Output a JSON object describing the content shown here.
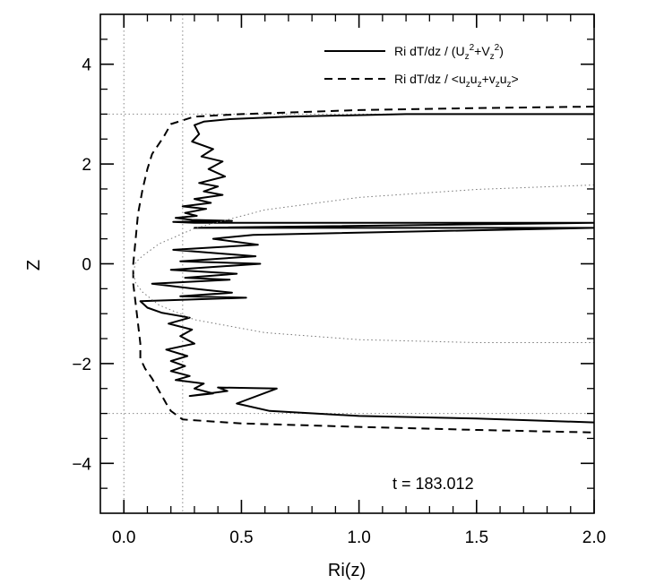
{
  "chart_data": {
    "type": "line",
    "title": "",
    "xlabel": "Ri(z)",
    "ylabel": "Z",
    "xlim": [
      -0.1,
      2.0
    ],
    "ylim": [
      -5,
      5
    ],
    "x_ticks": [
      0.0,
      0.5,
      1.0,
      1.5,
      2.0
    ],
    "x_tick_labels": [
      "0.0",
      "0.5",
      "1.0",
      "1.5",
      "2.0"
    ],
    "y_ticks": [
      -4,
      -2,
      0,
      2,
      4
    ],
    "y_tick_labels": [
      "−4",
      "−2",
      "0",
      "2",
      "4"
    ],
    "grid": false,
    "legend_position": "top-right",
    "annotation": "t = 183.012",
    "reference_lines": {
      "vertical_x": [
        0.0,
        0.25
      ],
      "horizontal_z": [
        3.0,
        -3.0
      ]
    },
    "series": [
      {
        "name": "Ri dT/dz / (U_z^2+V_z^2)",
        "style": "solid",
        "color": "#000000",
        "x": [
          2.0,
          1.2,
          0.7,
          0.45,
          0.34,
          0.3,
          0.32,
          0.29,
          0.38,
          0.33,
          0.42,
          0.36,
          0.43,
          0.32,
          0.4,
          0.34,
          0.42,
          0.3,
          0.37,
          0.25,
          0.35,
          0.26,
          0.31,
          0.22,
          0.29,
          0.46,
          0.21,
          0.3,
          2.0,
          0.3,
          2.0,
          0.55,
          0.38,
          0.57,
          0.21,
          0.56,
          0.24,
          0.58,
          0.2,
          0.48,
          0.26,
          0.45,
          0.12,
          0.3,
          0.46,
          0.24,
          0.52,
          0.07,
          0.1,
          0.16,
          0.28,
          0.19,
          0.29,
          0.24,
          0.3,
          0.18,
          0.27,
          0.2,
          0.26,
          0.2,
          0.28,
          0.22,
          0.34,
          0.3,
          0.38,
          0.28,
          0.44,
          0.4,
          0.65,
          0.48,
          0.62,
          1.0,
          1.5,
          2.0
        ],
        "y": [
          3.0,
          3.0,
          2.95,
          2.9,
          2.85,
          2.78,
          2.6,
          2.45,
          2.3,
          2.15,
          2.05,
          1.9,
          1.75,
          1.62,
          1.55,
          1.45,
          1.38,
          1.3,
          1.22,
          1.15,
          1.1,
          1.02,
          0.96,
          0.92,
          0.88,
          0.86,
          0.84,
          0.82,
          0.82,
          0.72,
          0.72,
          0.58,
          0.5,
          0.38,
          0.28,
          0.15,
          0.05,
          0.0,
          -0.12,
          -0.2,
          -0.28,
          -0.32,
          -0.4,
          -0.5,
          -0.58,
          -0.65,
          -0.68,
          -0.75,
          -0.88,
          -0.98,
          -1.08,
          -1.2,
          -1.32,
          -1.45,
          -1.6,
          -1.72,
          -1.85,
          -1.95,
          -2.05,
          -2.15,
          -2.25,
          -2.33,
          -2.4,
          -2.5,
          -2.6,
          -2.65,
          -2.55,
          -2.48,
          -2.5,
          -2.8,
          -2.95,
          -3.05,
          -3.1,
          -3.18
        ]
      },
      {
        "name": "Ri dT/dz / <u_z u_z+v_z u_z>",
        "style": "dashed",
        "color": "#000000",
        "x": [
          2.0,
          1.5,
          1.0,
          0.5,
          0.3,
          0.2,
          0.17,
          0.12,
          0.1,
          0.08,
          0.06,
          0.05,
          0.04,
          0.04,
          0.05,
          0.06,
          0.07,
          0.07,
          0.09,
          0.12,
          0.15,
          0.18,
          0.2,
          0.25,
          0.5,
          1.0,
          1.5,
          2.0
        ],
        "y": [
          3.15,
          3.12,
          3.08,
          3.0,
          2.95,
          2.8,
          2.55,
          2.2,
          1.9,
          1.5,
          1.0,
          0.5,
          0.0,
          -0.4,
          -0.8,
          -1.2,
          -1.6,
          -1.9,
          -2.1,
          -2.3,
          -2.55,
          -2.8,
          -2.95,
          -3.12,
          -3.2,
          -3.27,
          -3.33,
          -3.38
        ]
      },
      {
        "name": "",
        "style": "dotted",
        "color": "#777777",
        "x": [
          2.0,
          1.5,
          1.0,
          0.6,
          0.3,
          0.15,
          0.08,
          0.05,
          0.04,
          0.05,
          0.08,
          0.15,
          0.3,
          0.6,
          1.0,
          1.5,
          2.0
        ],
        "y": [
          1.58,
          1.49,
          1.33,
          1.08,
          0.71,
          0.4,
          0.16,
          0.03,
          -0.18,
          -0.39,
          -0.57,
          -0.83,
          -1.12,
          -1.38,
          -1.52,
          -1.58,
          -1.58
        ]
      }
    ]
  }
}
